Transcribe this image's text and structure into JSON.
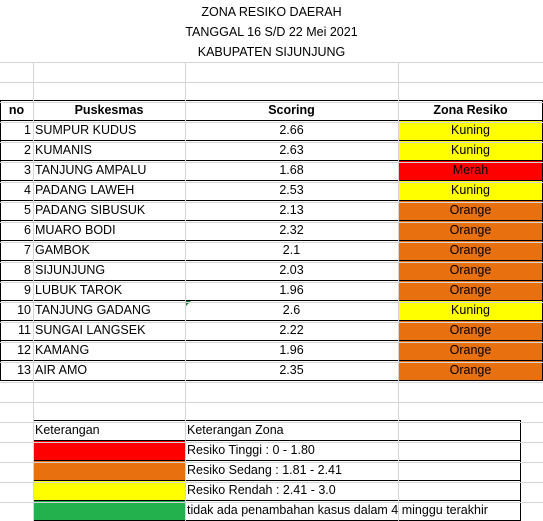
{
  "title": {
    "line1": "ZONA RESIKO DAERAH",
    "line2": "TANGGAL 16 S/D 22 Mei 2021",
    "line3": "KABUPATEN SIJUNJUNG"
  },
  "table": {
    "headers": {
      "no": "no",
      "puskesmas": "Puskesmas",
      "scoring": "Scoring",
      "zona": "Zona Resiko"
    },
    "rows": [
      {
        "no": "1",
        "puskesmas": "SUMPUR KUDUS",
        "scoring": "2.66",
        "zona": "Kuning"
      },
      {
        "no": "2",
        "puskesmas": "KUMANIS",
        "scoring": "2.63",
        "zona": "Kuning"
      },
      {
        "no": "3",
        "puskesmas": "TANJUNG AMPALU",
        "scoring": "1.68",
        "zona": "Merah"
      },
      {
        "no": "4",
        "puskesmas": "PADANG LAWEH",
        "scoring": "2.53",
        "zona": "Kuning"
      },
      {
        "no": "5",
        "puskesmas": "PADANG SIBUSUK",
        "scoring": "2.13",
        "zona": "Orange"
      },
      {
        "no": "6",
        "puskesmas": "MUARO BODI",
        "scoring": "2.32",
        "zona": "Orange"
      },
      {
        "no": "7",
        "puskesmas": "GAMBOK",
        "scoring": "2.1",
        "zona": "Orange"
      },
      {
        "no": "8",
        "puskesmas": "SIJUNJUNG",
        "scoring": "2.03",
        "zona": "Orange"
      },
      {
        "no": "9",
        "puskesmas": "LUBUK TAROK",
        "scoring": "1.96",
        "zona": "Orange"
      },
      {
        "no": "10",
        "puskesmas": "TANJUNG GADANG",
        "scoring": "2.6",
        "zona": "Kuning"
      },
      {
        "no": "11",
        "puskesmas": "SUNGAI LANGSEK",
        "scoring": "2.22",
        "zona": "Orange"
      },
      {
        "no": "12",
        "puskesmas": "KAMANG",
        "scoring": "1.96",
        "zona": "Orange"
      },
      {
        "no": "13",
        "puskesmas": "AIR AMO",
        "scoring": "2.35",
        "zona": "Orange"
      }
    ]
  },
  "legend": {
    "header_left": "Keterangan",
    "header_right": "Keterangan Zona",
    "items": [
      {
        "color": "#ff0000",
        "text": "Resiko Tinggi : 0 - 1.80"
      },
      {
        "color": "#e8700f",
        "text": "Resiko Sedang : 1.81 - 2.41"
      },
      {
        "color": "#ffff00",
        "text": "Resiko Rendah : 2.41 - 3.0"
      },
      {
        "color": "#23b14d",
        "text": "tidak ada penambahan kasus dalam 4 minggu terakhir"
      }
    ]
  },
  "zone_colors": {
    "Kuning": "#ffff00",
    "Merah": "#ff0000",
    "Orange": "#e8700f"
  }
}
